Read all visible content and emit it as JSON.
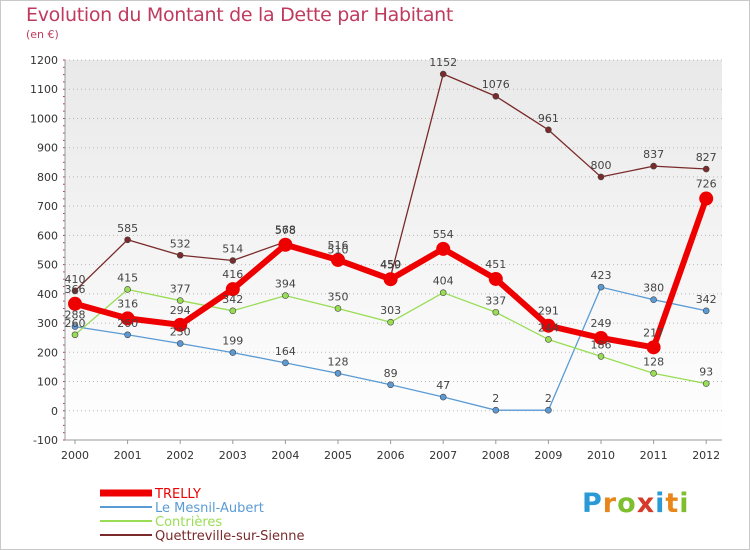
{
  "header": {
    "title": "Evolution du Montant de la Dette par Habitant",
    "subtitle": "(en €)"
  },
  "colors": {
    "title": "#c03a5e",
    "plot_bg_top": "#e9e9e9",
    "plot_bg_bottom": "#ffffff",
    "axis_ticks": "#c03a5e"
  },
  "logo": {
    "letters": [
      "P",
      "r",
      "o",
      "x",
      "i",
      "t",
      "i"
    ],
    "colors": [
      "#2a9ad6",
      "#e8861c",
      "#7fbf2e",
      "#d63a2a",
      "#2a9ad6",
      "#e8861c",
      "#7fbf2e"
    ]
  },
  "chart_data": {
    "type": "line",
    "title": "Evolution du Montant de la Dette par Habitant",
    "subtitle": "(en €)",
    "xlabel": "",
    "ylabel": "",
    "x": [
      "2000",
      "2001",
      "2002",
      "2003",
      "2004",
      "2005",
      "2006",
      "2007",
      "2008",
      "2009",
      "2010",
      "2011",
      "2012"
    ],
    "ylim": [
      -100,
      1200
    ],
    "yticks": [
      -100,
      0,
      100,
      200,
      300,
      400,
      500,
      600,
      700,
      800,
      900,
      1000,
      1100,
      1200
    ],
    "grid": "dotted horizontal",
    "legend_position": "bottom-left",
    "series": [
      {
        "name": "TRELLY",
        "color": "#ee0000",
        "width": 6,
        "marker": 7,
        "values": [
          366,
          316,
          294,
          416,
          568,
          516,
          450,
          554,
          451,
          291,
          249,
          217,
          726
        ],
        "labels": [
          "366",
          "316",
          "294",
          "416",
          "568",
          "516",
          "450",
          "554",
          "451",
          "291",
          "249",
          "217",
          "726"
        ]
      },
      {
        "name": "Le Mesnil-Aubert",
        "color": "#5b9bd5",
        "width": 1.3,
        "marker": 3,
        "values": [
          288,
          260,
          230,
          199,
          164,
          128,
          89,
          47,
          2,
          2,
          423,
          380,
          342
        ],
        "labels": [
          "288",
          "260",
          "230",
          "199",
          "164",
          "128",
          "89",
          "47",
          "2",
          "2",
          "423",
          "380",
          "342"
        ]
      },
      {
        "name": "Contrières",
        "color": "#99dd55",
        "width": 1.3,
        "marker": 3,
        "values": [
          260,
          415,
          377,
          342,
          394,
          350,
          303,
          404,
          337,
          244,
          186,
          128,
          93
        ],
        "labels": [
          "260",
          "415",
          "377",
          "342",
          "394",
          "350",
          "303",
          "404",
          "337",
          "244",
          "186",
          "128",
          "93"
        ]
      },
      {
        "name": "Quettreville-sur-Sienne",
        "color": "#7a2a2a",
        "width": 1.3,
        "marker": 3,
        "values": [
          410,
          585,
          532,
          514,
          578,
          510,
          459,
          1152,
          1076,
          961,
          800,
          837,
          827
        ],
        "labels": [
          "410",
          "585",
          "532",
          "514",
          "578",
          "510",
          "459",
          "1152",
          "1076",
          "961",
          "800",
          "837",
          "827"
        ]
      }
    ]
  }
}
